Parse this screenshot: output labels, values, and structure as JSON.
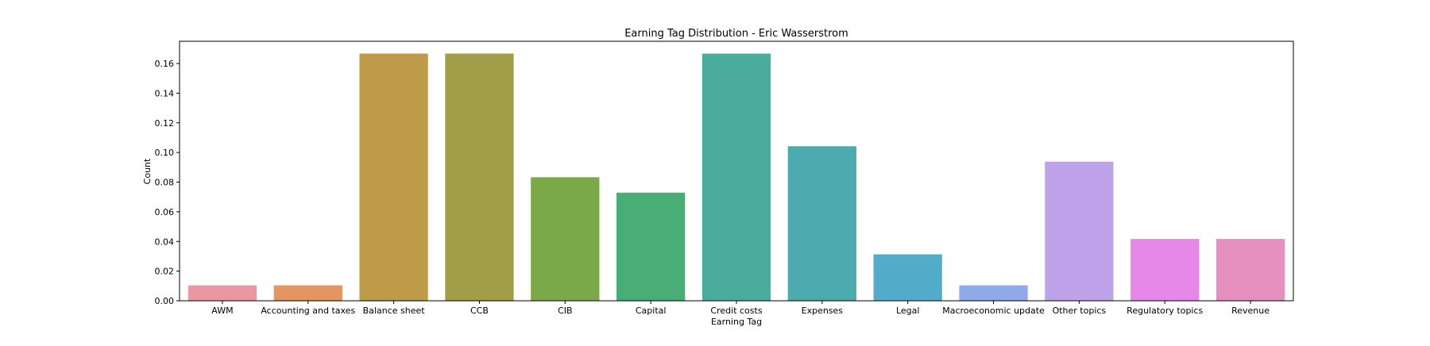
{
  "chart_data": {
    "type": "bar",
    "title": "Earning Tag Distribution - Eric Wasserstrom",
    "xlabel": "Earning Tag",
    "ylabel": "Count",
    "ylim": [
      0,
      0.175
    ],
    "yticks": [
      "0.00",
      "0.02",
      "0.04",
      "0.06",
      "0.08",
      "0.10",
      "0.12",
      "0.14",
      "0.16"
    ],
    "grid": false,
    "legend": "none",
    "categories": [
      "AWM",
      "Accounting and taxes",
      "Balance sheet",
      "CCB",
      "CIB",
      "Capital",
      "Credit costs",
      "Expenses",
      "Legal",
      "Macroeconomic update",
      "Other topics",
      "Regulatory topics",
      "Revenue"
    ],
    "values": [
      0.0104,
      0.0104,
      0.1667,
      0.1667,
      0.0833,
      0.0729,
      0.1667,
      0.1042,
      0.0313,
      0.0104,
      0.0938,
      0.0417,
      0.0417
    ],
    "colors": [
      "#ea96a3",
      "#e59561",
      "#bd9b48",
      "#a09e48",
      "#7ca947",
      "#49ae76",
      "#4aac9c",
      "#4cabae",
      "#53abca",
      "#8eaaea",
      "#bfa3ea",
      "#e688e8",
      "#e690c0"
    ]
  }
}
